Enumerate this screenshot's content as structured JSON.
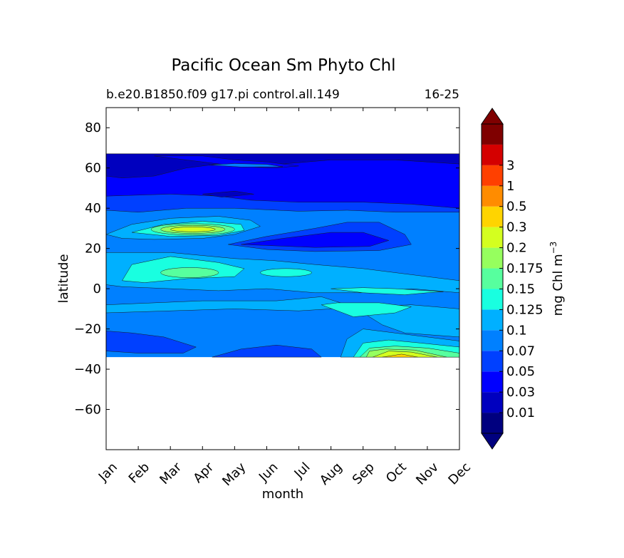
{
  "chart_data": {
    "type": "heatmap",
    "subtype": "filled-contour",
    "title": "Pacific Ocean Sm Phyto Chl",
    "subtitle_left": "b.e20.B1850.f09 g17.pi control.all.149",
    "subtitle_right": "16-25",
    "xlabel": "month",
    "ylabel": "latitude",
    "x_ticks": [
      "Jan",
      "Feb",
      "Mar",
      "Apr",
      "May",
      "Jun",
      "Jul",
      "Aug",
      "Sep",
      "Oct",
      "Nov",
      "Dec"
    ],
    "xlim": [
      0,
      11
    ],
    "ylim": [
      -80,
      90
    ],
    "y_ticks": [
      80,
      60,
      40,
      20,
      0,
      -20,
      -40,
      -60
    ],
    "y_tick_labels": [
      "80",
      "60",
      "40",
      "20",
      "0",
      "−20",
      "−40",
      "−60"
    ],
    "data_extent_lat": [
      -34,
      67
    ],
    "colorbar": {
      "label": "mg Chl m",
      "label_superscript": "−3",
      "extend": "both",
      "levels": [
        0.01,
        0.03,
        0.05,
        0.07,
        0.1,
        0.125,
        0.15,
        0.175,
        0.2,
        0.3,
        0.5,
        1,
        3
      ],
      "tick_labels": [
        "0.01",
        "0.03",
        "0.05",
        "0.07",
        "0.1",
        "0.125",
        "0.15",
        "0.175",
        "0.2",
        "0.3",
        "0.5",
        "1",
        "3"
      ],
      "colors": [
        "#00007f",
        "#0000bf",
        "#0000ff",
        "#0040ff",
        "#0080ff",
        "#00b0ff",
        "#19ffe0",
        "#57ff9e",
        "#96ff5e",
        "#d4ff1f",
        "#ffd400",
        "#ff8c00",
        "#ff4000",
        "#d40000",
        "#7f0000"
      ],
      "under_color": "#00007f",
      "over_color": "#7f0000"
    },
    "features": [
      {
        "name": "high-latitude low chl",
        "lat_range": [
          40,
          67
        ],
        "level": "0.01-0.05"
      },
      {
        "name": "spring subtropical bloom",
        "months": [
          "Mar",
          "Apr",
          "May"
        ],
        "lat": 29,
        "peak": "0.3"
      },
      {
        "name": "subtropical gyre minimum",
        "months": [
          "May",
          "Oct"
        ],
        "lat": 22,
        "level": "0.05-0.07"
      },
      {
        "name": "equatorial band",
        "lat_range": [
          -5,
          18
        ],
        "level": "0.1-0.175"
      },
      {
        "name": "austral spring bloom",
        "months": [
          "Sep",
          "Dec"
        ],
        "lat": -32,
        "peak": "0.5"
      }
    ]
  }
}
